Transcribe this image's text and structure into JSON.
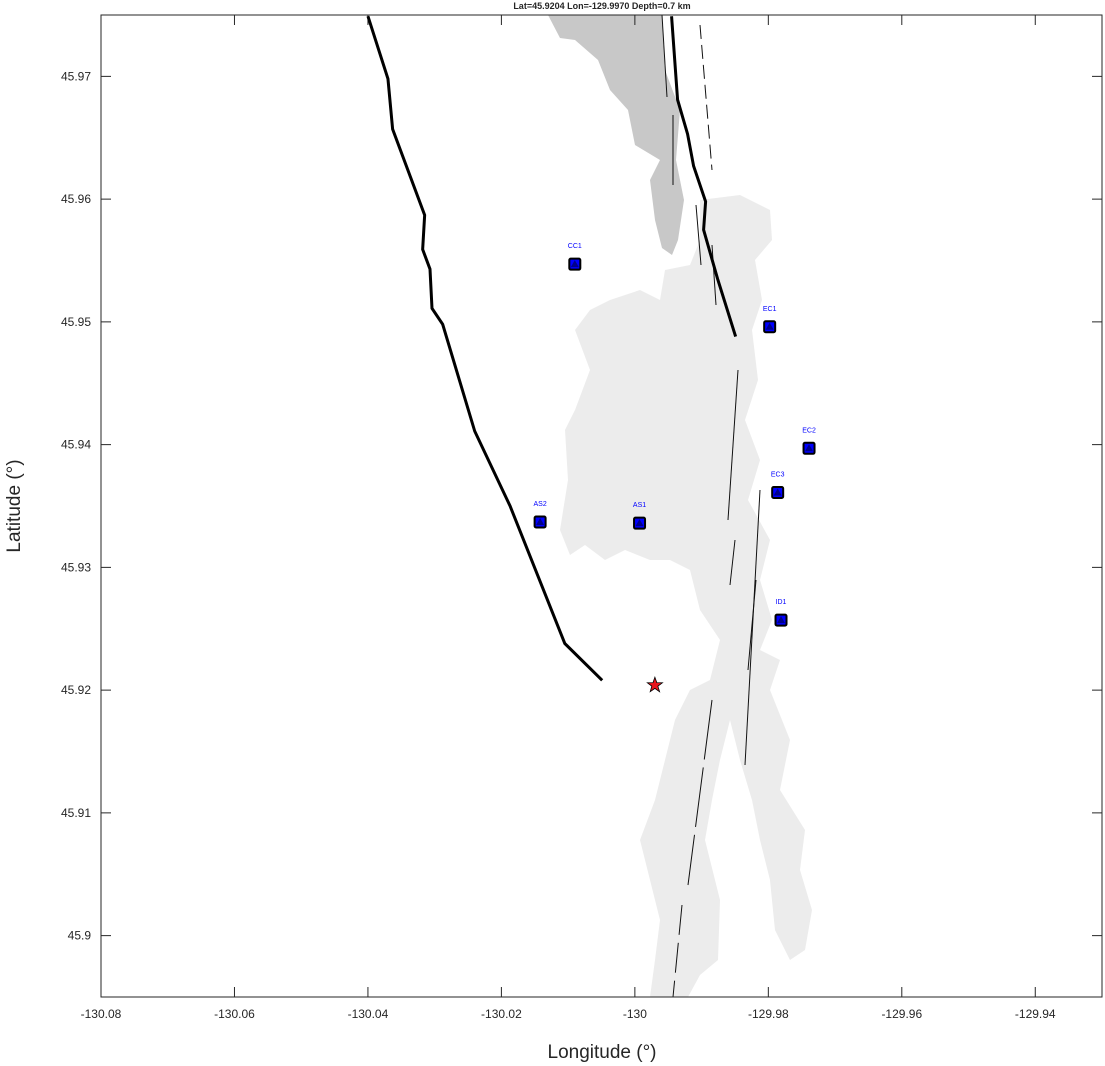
{
  "chart_data": {
    "type": "map",
    "title": "Lat=45.9204  Lon=-129.9970  Depth=0.7 km",
    "x_label": "Longitude (°)",
    "y_label": "Latitude (°)",
    "xlim": [
      -130.08,
      -129.93
    ],
    "ylim": [
      45.895,
      45.975
    ],
    "xticks": [
      -130.08,
      -130.06,
      -130.04,
      -130.02,
      -130,
      -129.98,
      -129.96,
      -129.94
    ],
    "yticks": [
      45.9,
      45.91,
      45.92,
      45.93,
      45.94,
      45.95,
      45.96,
      45.97
    ],
    "stations": {
      "labels": [
        "CC1",
        "EC1",
        "EC2",
        "EC3",
        "AS2",
        "AS1",
        "ID1"
      ],
      "x": [
        -130.009,
        -129.9798,
        -129.9739,
        -129.9786,
        -130.0142,
        -129.9993,
        -129.9781
      ],
      "y": [
        45.9547,
        45.9496,
        45.9397,
        45.9361,
        45.9337,
        45.9336,
        45.9257
      ],
      "color": "#0000ff"
    },
    "event": {
      "x": -129.997,
      "y": 45.9204,
      "color": "#e8141c"
    },
    "lines": [
      {
        "x": [
          -130.04,
          -130.037,
          -130.0363,
          -130.0315,
          -130.0318,
          -130.0307,
          -130.0304,
          -130.0288,
          -130.024,
          -130.0187,
          -130.0105,
          -130.0049
        ],
        "y": [
          45.9749,
          45.9698,
          45.9657,
          45.9587,
          45.9559,
          45.9543,
          45.9511,
          45.9498,
          45.9411,
          45.935,
          45.9238,
          45.9208
        ]
      },
      {
        "x": [
          -129.9945,
          -129.9936,
          -129.9921,
          -129.9912,
          -129.9894,
          -129.9897,
          -129.9876,
          -129.9849
        ],
        "y": [
          45.9749,
          45.9681,
          45.9653,
          45.9627,
          45.9598,
          45.9575,
          45.9535,
          45.9488
        ]
      }
    ]
  }
}
